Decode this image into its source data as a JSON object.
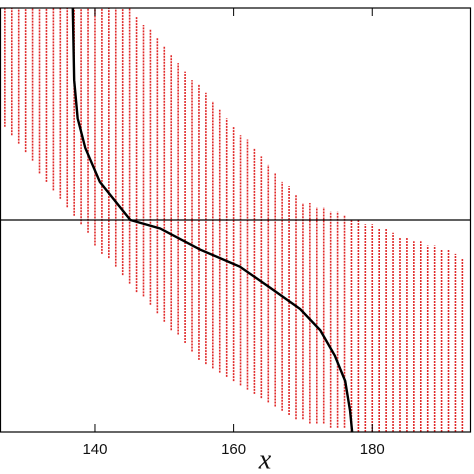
{
  "chart_data": {
    "type": "line",
    "x_label": "x",
    "xlim": [
      126.3,
      194.1
    ],
    "ylim": [
      0,
      1
    ],
    "xticks": [
      140,
      160,
      180
    ],
    "hline": 0.5,
    "bands": {
      "color": "#e02a2a",
      "x": [
        127,
        128,
        129,
        130,
        131,
        132,
        133,
        134,
        135,
        136,
        137,
        138,
        139,
        140,
        141,
        142,
        143,
        144,
        145,
        146,
        147,
        148,
        149,
        150,
        151,
        152,
        153,
        154,
        155,
        156,
        157,
        158,
        159,
        160,
        161,
        162,
        163,
        164,
        165,
        166,
        167,
        168,
        169,
        170,
        171,
        172,
        173,
        174,
        175,
        176,
        177,
        178,
        179,
        180,
        181,
        182,
        183,
        184,
        185,
        186,
        187,
        188,
        189,
        190,
        191,
        192,
        193
      ],
      "low": [
        0.72,
        0.7,
        0.68,
        0.66,
        0.64,
        0.61,
        0.59,
        0.57,
        0.55,
        0.53,
        0.51,
        0.49,
        0.47,
        0.44,
        0.42,
        0.41,
        0.39,
        0.37,
        0.35,
        0.33,
        0.32,
        0.3,
        0.28,
        0.26,
        0.24,
        0.23,
        0.21,
        0.19,
        0.17,
        0.16,
        0.15,
        0.14,
        0.13,
        0.12,
        0.11,
        0.1,
        0.09,
        0.08,
        0.07,
        0.06,
        0.05,
        0.04,
        0.03,
        0.03,
        0.02,
        0.02,
        0.02,
        0.01,
        0.01,
        0.01,
        0,
        0,
        0,
        0,
        0,
        0,
        0,
        0,
        0,
        0,
        0,
        0,
        0,
        0,
        0,
        0,
        0
      ],
      "high": [
        1,
        1,
        1,
        1,
        1,
        1,
        1,
        1,
        1,
        1,
        1,
        1,
        1,
        1,
        1,
        1,
        1,
        1,
        1,
        0.98,
        0.96,
        0.95,
        0.93,
        0.91,
        0.89,
        0.87,
        0.85,
        0.83,
        0.82,
        0.8,
        0.78,
        0.76,
        0.74,
        0.72,
        0.7,
        0.69,
        0.67,
        0.65,
        0.63,
        0.61,
        0.59,
        0.58,
        0.56,
        0.54,
        0.54,
        0.53,
        0.53,
        0.52,
        0.52,
        0.51,
        0.5,
        0.5,
        0.49,
        0.49,
        0.48,
        0.48,
        0.47,
        0.46,
        0.46,
        0.45,
        0.45,
        0.44,
        0.44,
        0.43,
        0.43,
        0.42,
        0.41
      ]
    },
    "curve": {
      "color": "#000000",
      "x": [
        136.8,
        137.0,
        137.5,
        138.6,
        140.7,
        145.1,
        149.4,
        155.2,
        160.9,
        165.3,
        169.6,
        172.5,
        174.6,
        176.1,
        176.8,
        177.1
      ],
      "y": [
        1.0,
        0.83,
        0.74,
        0.67,
        0.59,
        0.5,
        0.48,
        0.43,
        0.39,
        0.34,
        0.29,
        0.24,
        0.18,
        0.12,
        0.05,
        0.0
      ]
    }
  }
}
